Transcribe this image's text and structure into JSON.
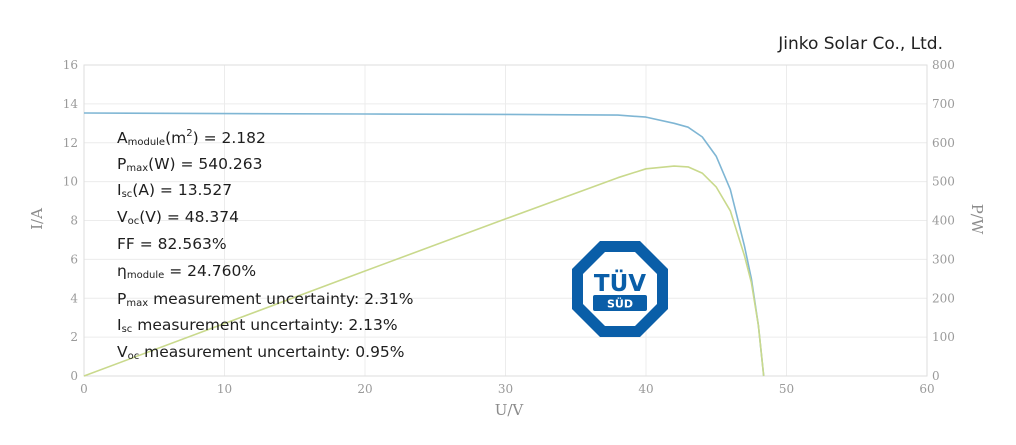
{
  "company": "Jinko Solar Co., Ltd.",
  "logo_text": {
    "top": "TÜV",
    "bottom": "SÜD"
  },
  "annotations": [
    {
      "main": "A",
      "sub": "module",
      "unit_pre": "(m",
      "sup": "2",
      "rest": ") = 2.182"
    },
    {
      "main": "P",
      "sub": "max",
      "unit_pre": "",
      "sup": "",
      "rest": "(W) = 540.263"
    },
    {
      "main": "I",
      "sub": "sc",
      "unit_pre": "",
      "sup": "",
      "rest": "(A) = 13.527"
    },
    {
      "main": "V",
      "sub": "oc",
      "unit_pre": "",
      "sup": "",
      "rest": "(V) = 48.374"
    },
    {
      "main": "FF",
      "sub": "",
      "unit_pre": "",
      "sup": "",
      "rest": " = 82.563%"
    },
    {
      "main": "η",
      "sub": "module",
      "unit_pre": "",
      "sup": "",
      "rest": " = 24.760%"
    },
    {
      "main": "P",
      "sub": "max",
      "unit_pre": "",
      "sup": "",
      "rest": " measurement uncertainty: 2.31%"
    },
    {
      "main": "I",
      "sub": "sc",
      "unit_pre": "",
      "sup": "",
      "rest": " measurement uncertainty: 2.13%"
    },
    {
      "main": "V",
      "sub": "oc",
      "unit_pre": "",
      "sup": "",
      "rest": " measurement uncertainty: 0.95%"
    }
  ],
  "chart_data": {
    "type": "line",
    "xlabel": "U/V",
    "ylabel_left": "I/A",
    "ylabel_right": "P/W",
    "xlim": [
      0,
      60
    ],
    "ylim_left": [
      0,
      16
    ],
    "ylim_right": [
      0,
      800
    ],
    "x_ticks": [
      "0",
      "10",
      "20",
      "30",
      "40",
      "50",
      "60"
    ],
    "y_left_ticks": [
      "0",
      "2",
      "4",
      "6",
      "8",
      "10",
      "12",
      "14",
      "16"
    ],
    "y_right_ticks": [
      "0",
      "100",
      "200",
      "300",
      "400",
      "500",
      "600",
      "700",
      "800"
    ],
    "grid": true,
    "series": [
      {
        "axis": "left",
        "color": "#7fb6d4",
        "points": [
          [
            0,
            13.53
          ],
          [
            10,
            13.5
          ],
          [
            20,
            13.48
          ],
          [
            30,
            13.46
          ],
          [
            38,
            13.42
          ],
          [
            40,
            13.32
          ],
          [
            42,
            13.0
          ],
          [
            43,
            12.8
          ],
          [
            44,
            12.3
          ],
          [
            45,
            11.3
          ],
          [
            46,
            9.6
          ],
          [
            47,
            6.7
          ],
          [
            47.5,
            5.0
          ],
          [
            48,
            2.6
          ],
          [
            48.374,
            0
          ]
        ]
      },
      {
        "axis": "right",
        "color": "#c9d98c",
        "points": [
          [
            0,
            0
          ],
          [
            10,
            135
          ],
          [
            20,
            270
          ],
          [
            30,
            404
          ],
          [
            38,
            510
          ],
          [
            40,
            533
          ],
          [
            42,
            540
          ],
          [
            43,
            538
          ],
          [
            44,
            522
          ],
          [
            45,
            486
          ],
          [
            46,
            425
          ],
          [
            47,
            310
          ],
          [
            47.5,
            240
          ],
          [
            48,
            130
          ],
          [
            48.374,
            0
          ]
        ]
      }
    ]
  }
}
